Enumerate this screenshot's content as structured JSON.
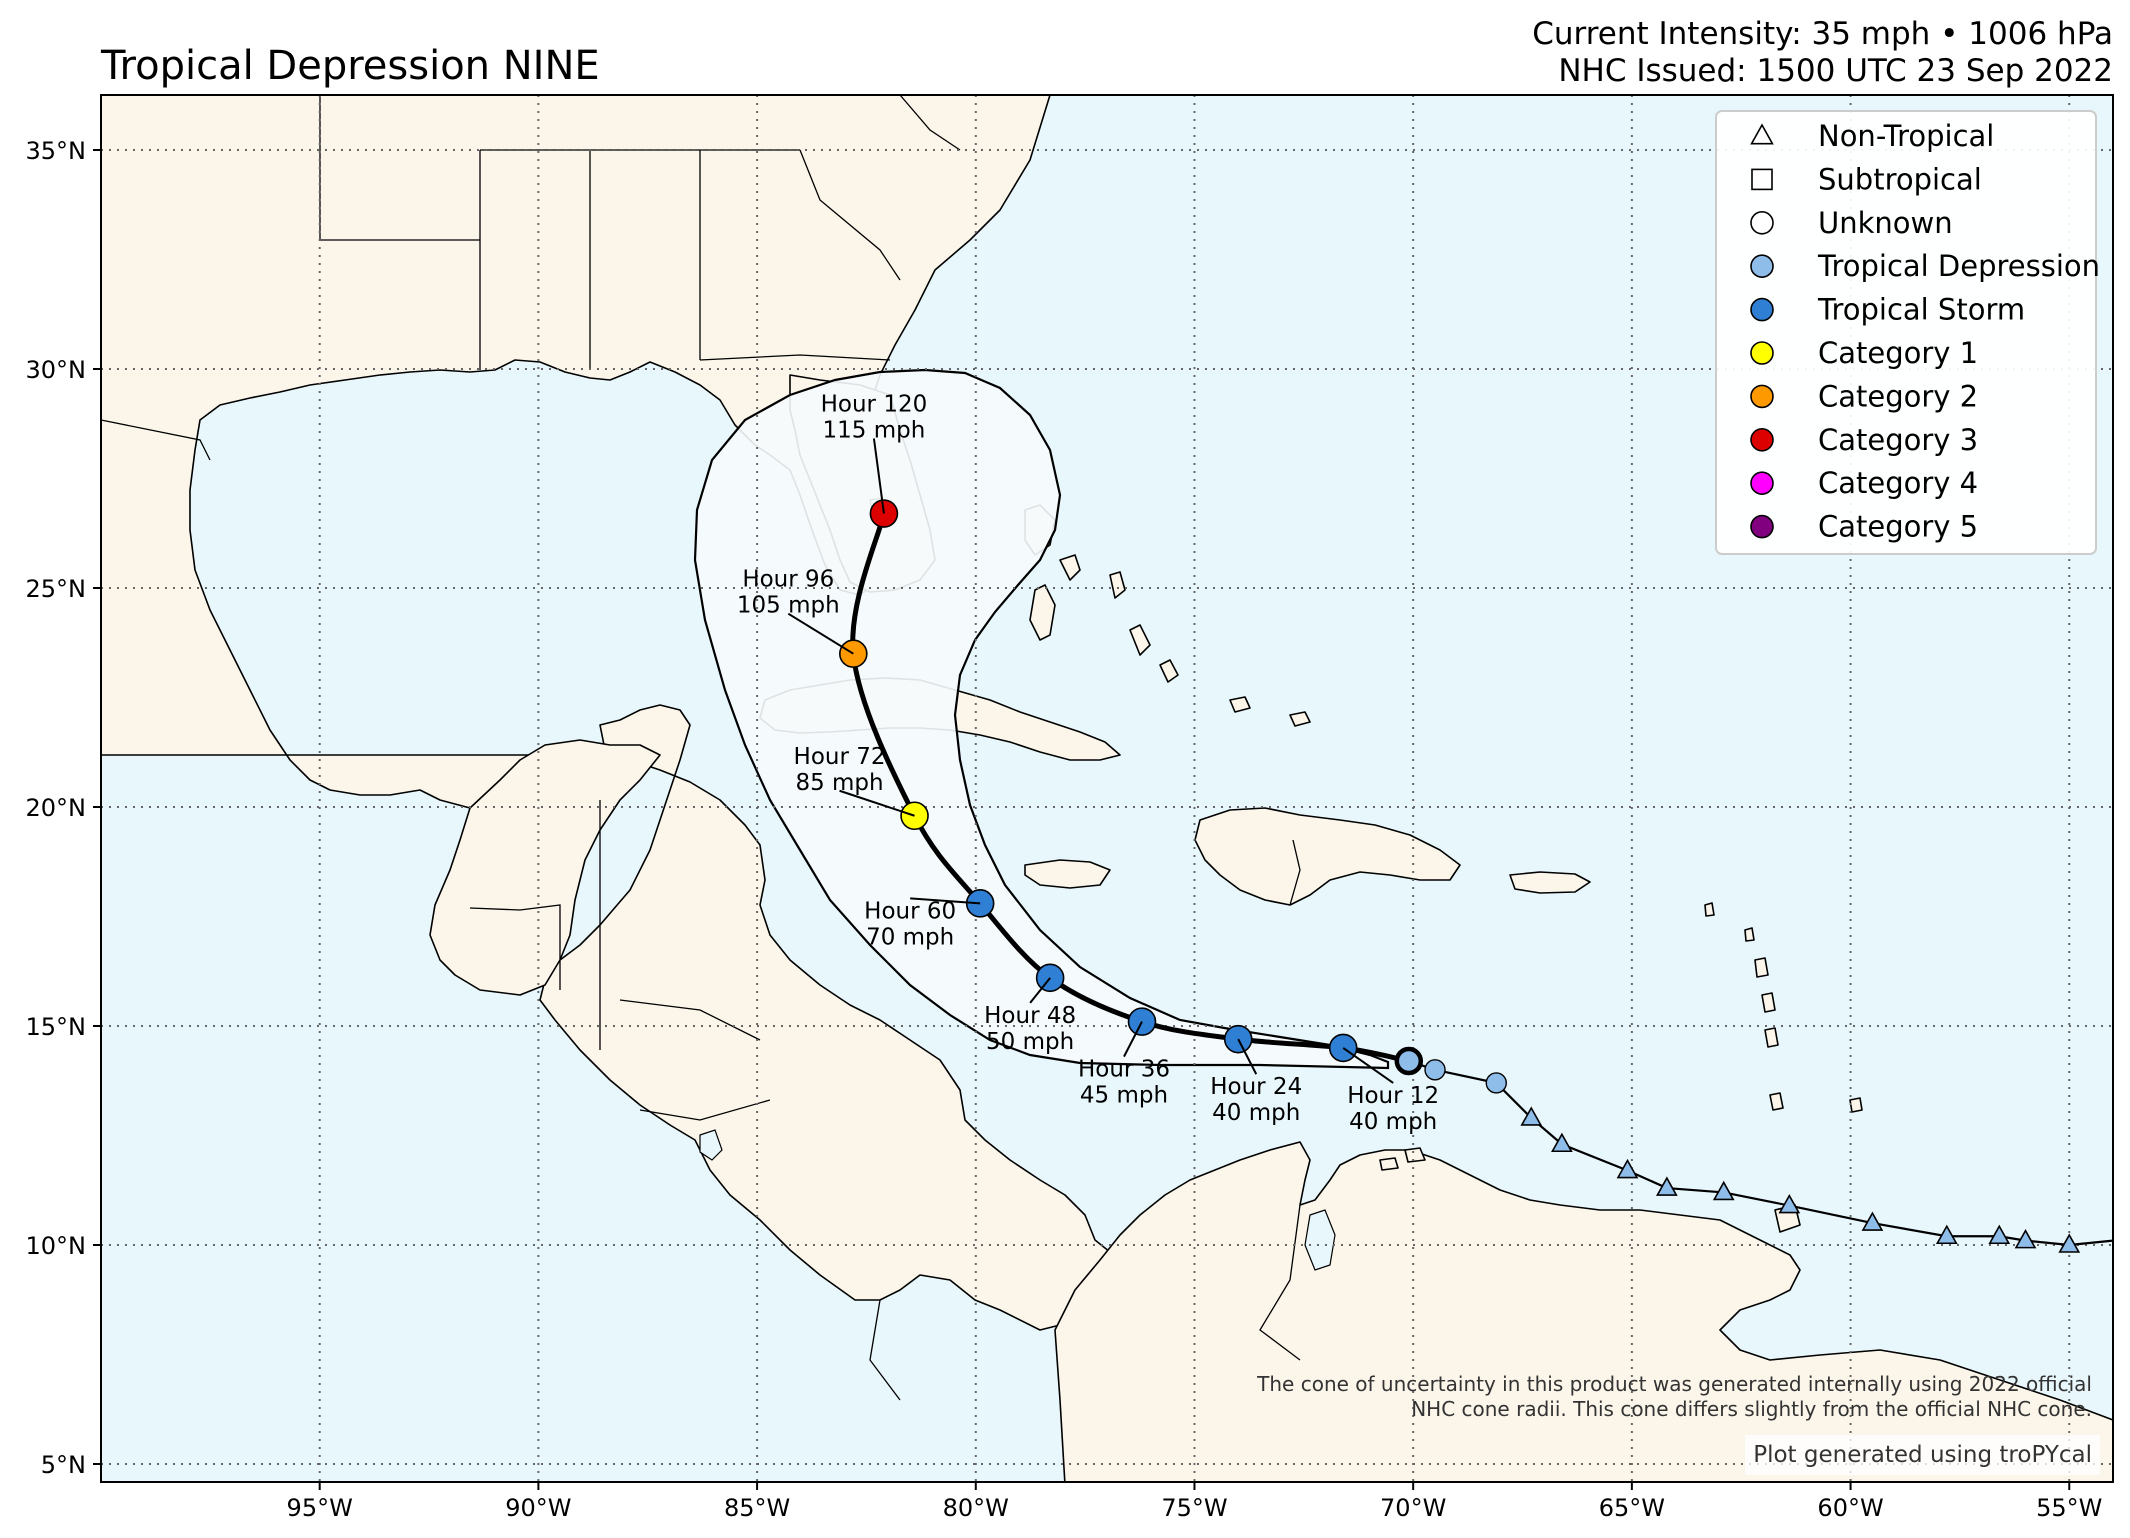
{
  "header": {
    "title": "Tropical Depression NINE",
    "intensity": "Current Intensity: 35 mph • 1006 hPa",
    "issued": "NHC Issued: 1500 UTC 23 Sep 2022"
  },
  "axes": {
    "lat_labels": [
      "35°N",
      "30°N",
      "25°N",
      "20°N",
      "15°N",
      "10°N",
      "5°N"
    ],
    "lon_labels": [
      "95°W",
      "90°W",
      "85°W",
      "80°W",
      "75°W",
      "70°W",
      "65°W",
      "60°W",
      "55°W"
    ],
    "lat_values": [
      35,
      30,
      25,
      20,
      15,
      10,
      5
    ],
    "lon_values": [
      -95,
      -90,
      -85,
      -80,
      -75,
      -70,
      -65,
      -60,
      -55
    ],
    "lon_range": [
      -100,
      -54
    ],
    "lat_range": [
      4.5,
      36.2
    ],
    "grid": true
  },
  "legend": {
    "placement": "top-right",
    "items": [
      {
        "label": "Non-Tropical",
        "symbol": "triangle",
        "color": "#ffffff"
      },
      {
        "label": "Subtropical",
        "symbol": "square",
        "color": "#ffffff"
      },
      {
        "label": "Unknown",
        "symbol": "circle",
        "color": "#ffffff"
      },
      {
        "label": "Tropical Depression",
        "symbol": "circle",
        "color": "#8fbdea"
      },
      {
        "label": "Tropical Storm",
        "symbol": "circle",
        "color": "#2f7fd4"
      },
      {
        "label": "Category 1",
        "symbol": "circle",
        "color": "#ffff00"
      },
      {
        "label": "Category 2",
        "symbol": "circle",
        "color": "#ff9900"
      },
      {
        "label": "Category 3",
        "symbol": "circle",
        "color": "#dd0000"
      },
      {
        "label": "Category 4",
        "symbol": "circle",
        "color": "#ff00ff"
      },
      {
        "label": "Category 5",
        "symbol": "circle",
        "color": "#800080"
      }
    ]
  },
  "colors": {
    "ocean": "#e8f7fc",
    "land": "#fbf5ea",
    "cone": "#f6fbfd",
    "track": "#000000"
  },
  "past_track": [
    {
      "lon": -54.0,
      "lat": 10.1,
      "type": "none"
    },
    {
      "lon": -55.0,
      "lat": 10.0,
      "type": "non-tropical"
    },
    {
      "lon": -56.0,
      "lat": 10.1,
      "type": "non-tropical"
    },
    {
      "lon": -56.6,
      "lat": 10.2,
      "type": "non-tropical"
    },
    {
      "lon": -57.8,
      "lat": 10.2,
      "type": "non-tropical"
    },
    {
      "lon": -59.5,
      "lat": 10.5,
      "type": "non-tropical"
    },
    {
      "lon": -61.4,
      "lat": 10.9,
      "type": "non-tropical"
    },
    {
      "lon": -62.9,
      "lat": 11.2,
      "type": "non-tropical"
    },
    {
      "lon": -64.2,
      "lat": 11.3,
      "type": "non-tropical"
    },
    {
      "lon": -65.1,
      "lat": 11.7,
      "type": "non-tropical"
    },
    {
      "lon": -66.6,
      "lat": 12.3,
      "type": "non-tropical"
    },
    {
      "lon": -67.3,
      "lat": 12.9,
      "type": "non-tropical"
    },
    {
      "lon": -68.1,
      "lat": 13.7,
      "type": "tropical-depression"
    },
    {
      "lon": -69.5,
      "lat": 14.0,
      "type": "tropical-depression"
    },
    {
      "lon": -70.1,
      "lat": 14.2,
      "type": "tropical-depression"
    }
  ],
  "forecast": [
    {
      "hour": "Hour 12",
      "wind": "40 mph",
      "lon": -71.6,
      "lat": 14.5,
      "category": "Tropical Storm",
      "color": "#2f7fd4"
    },
    {
      "hour": "Hour 24",
      "wind": "40 mph",
      "lon": -74.0,
      "lat": 14.7,
      "category": "Tropical Storm",
      "color": "#2f7fd4"
    },
    {
      "hour": "Hour 36",
      "wind": "45 mph",
      "lon": -76.2,
      "lat": 15.1,
      "category": "Tropical Storm",
      "color": "#2f7fd4"
    },
    {
      "hour": "Hour 48",
      "wind": "50 mph",
      "lon": -78.3,
      "lat": 16.1,
      "category": "Tropical Storm",
      "color": "#2f7fd4"
    },
    {
      "hour": "Hour 60",
      "wind": "70 mph",
      "lon": -79.9,
      "lat": 17.8,
      "category": "Tropical Storm",
      "color": "#2f7fd4"
    },
    {
      "hour": "Hour 72",
      "wind": "85 mph",
      "lon": -81.4,
      "lat": 19.8,
      "category": "Category 1",
      "color": "#ffff00"
    },
    {
      "hour": "Hour 96",
      "wind": "105 mph",
      "lon": -82.8,
      "lat": 23.5,
      "category": "Category 2",
      "color": "#ff9900"
    },
    {
      "hour": "Hour 120",
      "wind": "115 mph",
      "lon": -82.1,
      "lat": 26.7,
      "category": "Category 3",
      "color": "#dd0000"
    }
  ],
  "footer": {
    "cone_note_1": "The cone of uncertainty in this product was generated internally using 2022 official",
    "cone_note_2": "NHC cone radii. This cone differs slightly from the official NHC cone.",
    "credit": "Plot generated using troPYcal"
  }
}
